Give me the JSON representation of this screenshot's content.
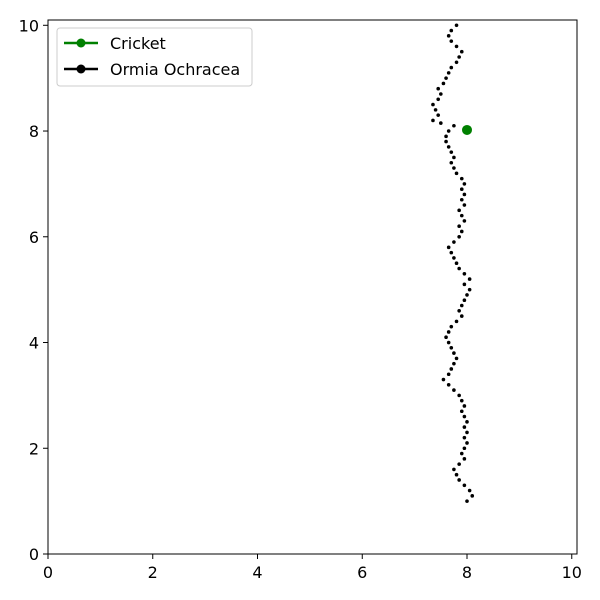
{
  "chart_data": {
    "type": "scatter",
    "title": "",
    "xlabel": "",
    "ylabel": "",
    "xlim": [
      0,
      10.1
    ],
    "ylim": [
      0,
      10.1
    ],
    "xticks": [
      0,
      2,
      4,
      6,
      8,
      10
    ],
    "yticks": [
      0,
      2,
      4,
      6,
      8,
      10
    ],
    "grid": false,
    "legend_position": "top-left",
    "series": [
      {
        "name": "Cricket",
        "color": "#008000",
        "marker": "circle",
        "points": [
          [
            8.0,
            8.02
          ]
        ]
      },
      {
        "name": "Ormia Ochracea",
        "color": "#000000",
        "marker": "dot",
        "points": [
          [
            8.0,
            1.0
          ],
          [
            8.1,
            1.1
          ],
          [
            8.05,
            1.2
          ],
          [
            7.95,
            1.3
          ],
          [
            7.85,
            1.4
          ],
          [
            7.8,
            1.5
          ],
          [
            7.75,
            1.6
          ],
          [
            7.85,
            1.7
          ],
          [
            7.95,
            1.8
          ],
          [
            7.9,
            1.9
          ],
          [
            7.95,
            2.0
          ],
          [
            8.0,
            2.1
          ],
          [
            7.95,
            2.2
          ],
          [
            8.0,
            2.3
          ],
          [
            7.95,
            2.4
          ],
          [
            8.0,
            2.5
          ],
          [
            7.95,
            2.6
          ],
          [
            7.9,
            2.7
          ],
          [
            7.95,
            2.8
          ],
          [
            7.9,
            2.9
          ],
          [
            7.85,
            3.0
          ],
          [
            7.75,
            3.1
          ],
          [
            7.65,
            3.2
          ],
          [
            7.55,
            3.3
          ],
          [
            7.65,
            3.4
          ],
          [
            7.7,
            3.5
          ],
          [
            7.75,
            3.6
          ],
          [
            7.8,
            3.7
          ],
          [
            7.75,
            3.8
          ],
          [
            7.7,
            3.9
          ],
          [
            7.65,
            4.0
          ],
          [
            7.6,
            4.1
          ],
          [
            7.65,
            4.2
          ],
          [
            7.7,
            4.3
          ],
          [
            7.8,
            4.4
          ],
          [
            7.9,
            4.5
          ],
          [
            7.85,
            4.6
          ],
          [
            7.9,
            4.7
          ],
          [
            7.95,
            4.8
          ],
          [
            8.0,
            4.9
          ],
          [
            8.05,
            5.0
          ],
          [
            7.95,
            5.1
          ],
          [
            8.05,
            5.2
          ],
          [
            7.95,
            5.3
          ],
          [
            7.85,
            5.4
          ],
          [
            7.8,
            5.5
          ],
          [
            7.75,
            5.6
          ],
          [
            7.7,
            5.7
          ],
          [
            7.65,
            5.8
          ],
          [
            7.75,
            5.9
          ],
          [
            7.85,
            6.0
          ],
          [
            7.9,
            6.1
          ],
          [
            7.85,
            6.2
          ],
          [
            7.95,
            6.3
          ],
          [
            7.9,
            6.4
          ],
          [
            7.85,
            6.5
          ],
          [
            7.95,
            6.6
          ],
          [
            7.9,
            6.7
          ],
          [
            7.95,
            6.8
          ],
          [
            7.9,
            6.9
          ],
          [
            7.95,
            7.0
          ],
          [
            7.9,
            7.1
          ],
          [
            7.8,
            7.2
          ],
          [
            7.75,
            7.3
          ],
          [
            7.7,
            7.4
          ],
          [
            7.75,
            7.5
          ],
          [
            7.7,
            7.6
          ],
          [
            7.65,
            7.7
          ],
          [
            7.6,
            7.8
          ],
          [
            7.6,
            7.9
          ],
          [
            7.65,
            8.0
          ],
          [
            7.75,
            8.1
          ],
          [
            7.5,
            8.15
          ],
          [
            7.35,
            8.2
          ],
          [
            7.45,
            8.3
          ],
          [
            7.4,
            8.4
          ],
          [
            7.35,
            8.5
          ],
          [
            7.45,
            8.6
          ],
          [
            7.5,
            8.7
          ],
          [
            7.45,
            8.8
          ],
          [
            7.55,
            8.9
          ],
          [
            7.6,
            9.0
          ],
          [
            7.65,
            9.1
          ],
          [
            7.7,
            9.2
          ],
          [
            7.8,
            9.3
          ],
          [
            7.85,
            9.4
          ],
          [
            7.9,
            9.5
          ],
          [
            7.8,
            9.6
          ],
          [
            7.7,
            9.7
          ],
          [
            7.65,
            9.8
          ],
          [
            7.7,
            9.9
          ],
          [
            7.8,
            10.0
          ]
        ]
      }
    ]
  }
}
